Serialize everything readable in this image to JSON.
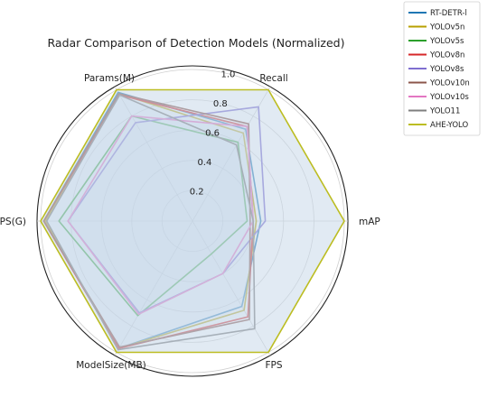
{
  "chart_data": {
    "type": "radar",
    "title": "Radar Comparison of Detection Models (Normalized)",
    "axes": [
      "mAP",
      "Recall",
      "Params(M)",
      "FLOPS(G)",
      "ModelSize(MB)",
      "FPS"
    ],
    "r_ticks": [
      "0.2",
      "0.4",
      "0.6",
      "0.8",
      "1.0"
    ],
    "r_range": [
      0,
      1.0
    ],
    "grid": true,
    "legend_position": "top-right (outside)",
    "series": [
      {
        "name": "RT-DETR-l",
        "color": "#1f77b4",
        "values": [
          0.45,
          0.7,
          0.98,
          0.98,
          0.97,
          0.65
        ]
      },
      {
        "name": "YOLOv5n",
        "color": "#b8a000",
        "values": [
          0.42,
          0.67,
          0.97,
          0.97,
          0.97,
          0.68
        ]
      },
      {
        "name": "YOLOv5s",
        "color": "#2ca02c",
        "values": [
          0.36,
          0.6,
          0.8,
          0.88,
          0.72,
          0.25
        ]
      },
      {
        "name": "YOLOv8n",
        "color": "#d62728",
        "values": [
          0.4,
          0.72,
          0.96,
          0.98,
          0.97,
          0.73
        ]
      },
      {
        "name": "YOLOv8s",
        "color": "#7f6fd0",
        "values": [
          0.48,
          0.87,
          0.75,
          0.82,
          0.7,
          0.4
        ]
      },
      {
        "name": "YOLOv10n",
        "color": "#8c564b",
        "values": [
          0.38,
          0.74,
          0.97,
          0.98,
          0.96,
          0.75
        ]
      },
      {
        "name": "YOLOv10s",
        "color": "#e377c2",
        "values": [
          0.4,
          0.72,
          0.8,
          0.82,
          0.71,
          0.4
        ]
      },
      {
        "name": "YOLO11",
        "color": "#7f7f7f",
        "values": [
          0.4,
          0.58,
          0.96,
          0.96,
          0.98,
          0.82
        ]
      },
      {
        "name": "AHE-YOLO",
        "color": "#bcbd22",
        "values": [
          1.0,
          1.0,
          1.0,
          1.0,
          1.0,
          1.0
        ]
      }
    ]
  }
}
